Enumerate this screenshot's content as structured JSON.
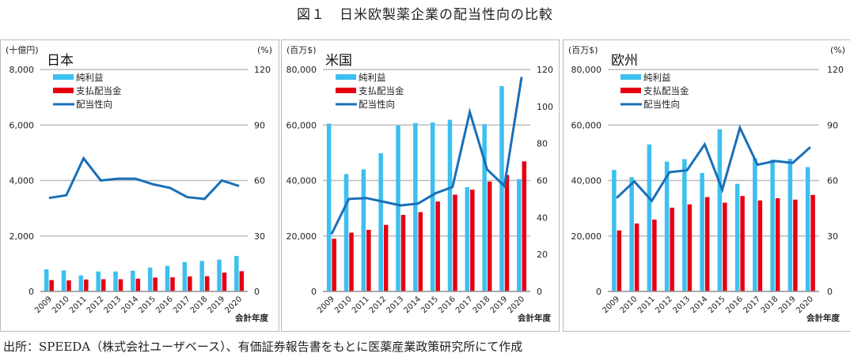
{
  "figure": {
    "title": "図１　日米欧製薬企業の配当性向の比較",
    "source": "出所：SPEEDA（株式会社ユーザベース）、有価証券報告書をもとに医薬産業政策研究所にて作成"
  },
  "colors": {
    "net_income": "#3dbff0",
    "dividends": "#e60012",
    "payout": "#1a6fb8",
    "grid": "#bdbdbd",
    "border": "#b9b9b9"
  },
  "legend": [
    "純利益",
    "支払配当金",
    "配当性向"
  ],
  "chart_data": [
    {
      "type": "bar",
      "title": "日本",
      "ylabel": "(十億円)",
      "y2label": "(%)",
      "xlabel": "会計年度",
      "categories": [
        "2009",
        "2010",
        "2011",
        "2012",
        "2013",
        "2014",
        "2015",
        "2016",
        "2017",
        "2018",
        "2019",
        "2020"
      ],
      "ylim": [
        0,
        8000
      ],
      "yticks": [
        "0",
        "2,000",
        "4,000",
        "6,000",
        "8,000"
      ],
      "y2lim": [
        0,
        120
      ],
      "y2ticks": [
        "0",
        "30",
        "60",
        "90",
        "120"
      ],
      "grid": true,
      "legend_position": "upper-left",
      "series": [
        {
          "name": "純利益",
          "type": "bar",
          "axis": "left",
          "values": [
            800,
            760,
            580,
            720,
            720,
            750,
            860,
            920,
            1060,
            1100,
            1150,
            1280
          ]
        },
        {
          "name": "支払配当金",
          "type": "bar",
          "axis": "left",
          "values": [
            410,
            400,
            430,
            440,
            440,
            460,
            500,
            510,
            540,
            550,
            680,
            730
          ]
        },
        {
          "name": "配当性向",
          "type": "line",
          "axis": "right",
          "values": [
            50.5,
            52,
            72,
            60,
            61,
            61,
            58,
            56,
            51,
            50,
            60,
            57
          ]
        }
      ]
    },
    {
      "type": "bar",
      "title": "米国",
      "ylabel": "(百万$)",
      "y2label": "",
      "xlabel": "会計年度",
      "categories": [
        "2009",
        "2010",
        "2011",
        "2012",
        "2013",
        "2014",
        "2015",
        "2016",
        "2017",
        "2018",
        "2019",
        "2020"
      ],
      "ylim": [
        0,
        80000
      ],
      "yticks": [
        "0",
        "20,000",
        "40,000",
        "60,000",
        "80,000"
      ],
      "y2lim": [
        0,
        120
      ],
      "y2ticks": [
        "0",
        "20",
        "40",
        "60",
        "80",
        "100",
        "120"
      ],
      "grid": true,
      "legend_position": "upper-left",
      "series": [
        {
          "name": "純利益",
          "type": "bar",
          "axis": "left",
          "values": [
            60500,
            42300,
            44000,
            49800,
            59800,
            60700,
            60900,
            61900,
            37600,
            60300,
            74000,
            40500
          ]
        },
        {
          "name": "支払配当金",
          "type": "bar",
          "axis": "left",
          "values": [
            19000,
            21200,
            22200,
            24000,
            27600,
            28600,
            32400,
            34900,
            36700,
            39600,
            42000,
            46900
          ]
        },
        {
          "name": "配当性向",
          "type": "line",
          "axis": "right",
          "values": [
            31,
            50,
            50.5,
            48.5,
            46.5,
            47.5,
            53,
            56.5,
            97,
            66,
            57,
            116
          ]
        }
      ]
    },
    {
      "type": "bar",
      "title": "欧州",
      "ylabel": "(百万$)",
      "y2label": "(%)",
      "xlabel": "会計年度",
      "categories": [
        "2009",
        "2010",
        "2011",
        "2012",
        "2013",
        "2014",
        "2015",
        "2016",
        "2017",
        "2018",
        "2019",
        "2020"
      ],
      "ylim": [
        0,
        80000
      ],
      "yticks": [
        "0",
        "20,000",
        "40,000",
        "60,000",
        "80,000"
      ],
      "y2lim": [
        0,
        120
      ],
      "y2ticks": [
        "0",
        "30",
        "60",
        "90",
        "120"
      ],
      "grid": true,
      "legend_position": "upper-left",
      "series": [
        {
          "name": "純利益",
          "type": "bar",
          "axis": "left",
          "values": [
            43800,
            41200,
            53000,
            46800,
            47700,
            42700,
            58500,
            38800,
            48000,
            47500,
            47800,
            44800
          ]
        },
        {
          "name": "支払配当金",
          "type": "bar",
          "axis": "left",
          "values": [
            22000,
            24500,
            25900,
            30200,
            31400,
            34000,
            32000,
            34400,
            32800,
            33600,
            33100,
            34800
          ]
        },
        {
          "name": "配当性向",
          "type": "line",
          "axis": "right",
          "values": [
            50.5,
            59.5,
            49,
            64.5,
            65.5,
            79.5,
            55,
            88.5,
            68.5,
            70.5,
            69.5,
            78
          ]
        }
      ]
    }
  ]
}
